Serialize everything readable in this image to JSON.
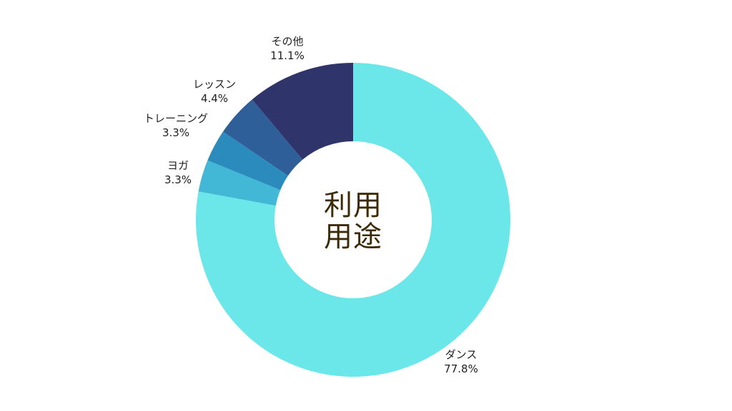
{
  "chart_data": {
    "type": "pie",
    "variant": "donut",
    "center_title": [
      "利用",
      "用途"
    ],
    "slices": [
      {
        "label": "ダンス",
        "value": 77.8,
        "value_label": "77.8%",
        "color": "#6be6e9"
      },
      {
        "label": "ヨガ",
        "value": 3.3,
        "value_label": "3.3%",
        "color": "#42b8d6"
      },
      {
        "label": "トレーニング",
        "value": 3.3,
        "value_label": "3.3%",
        "color": "#2b8bbd"
      },
      {
        "label": "レッスン",
        "value": 4.4,
        "value_label": "4.4%",
        "color": "#2f5f99"
      },
      {
        "label": "その他",
        "value": 11.1,
        "value_label": "11.1%",
        "color": "#2f346b"
      }
    ],
    "start_angle": "top",
    "direction": "clockwise",
    "legend": "none"
  }
}
